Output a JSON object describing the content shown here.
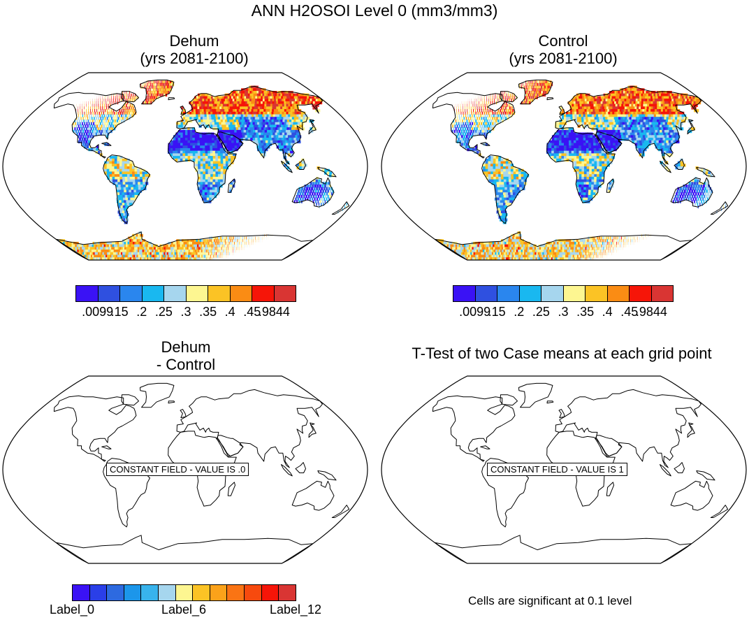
{
  "figure": {
    "title": "ANN H2OSOI Level 0 (mm3/mm3)"
  },
  "panels": {
    "dehum": {
      "title_line1": "Dehum",
      "title_line2": "(yrs 2081-2100)"
    },
    "control": {
      "title_line1": "Control",
      "title_line2": "(yrs 2081-2100)"
    },
    "difference": {
      "title_line1": "Dehum",
      "title_line2": "- Control",
      "constant_label": "CONSTANT FIELD - VALUE IS .0"
    },
    "ttest": {
      "title": "T-Test of two Case means at each grid point",
      "constant_label": "CONSTANT FIELD - VALUE IS 1",
      "footnote": "Cells are significant at 0.1 level"
    }
  },
  "colorbars": {
    "top": {
      "colors": [
        "#3a12f5",
        "#2f50e0",
        "#2a86ee",
        "#19b8f0",
        "#a6d6ee",
        "#fdf691",
        "#fbc325",
        "#fa8c14",
        "#f61508",
        "#d93533"
      ],
      "labels": [
        ".0099",
        ".15",
        ".2",
        ".25",
        ".3",
        ".35",
        ".4",
        ".45",
        ".9844"
      ]
    },
    "bottom": {
      "colors": [
        "#3a12f5",
        "#2a3fe8",
        "#2d6ae0",
        "#1c96ea",
        "#38b3ec",
        "#a6d6ee",
        "#fdf691",
        "#fbc325",
        "#fba21a",
        "#fa7414",
        "#f74a0e",
        "#f61508",
        "#d93533"
      ],
      "labels": [
        "Label_0",
        "Label_6",
        "Label_12"
      ]
    }
  }
}
